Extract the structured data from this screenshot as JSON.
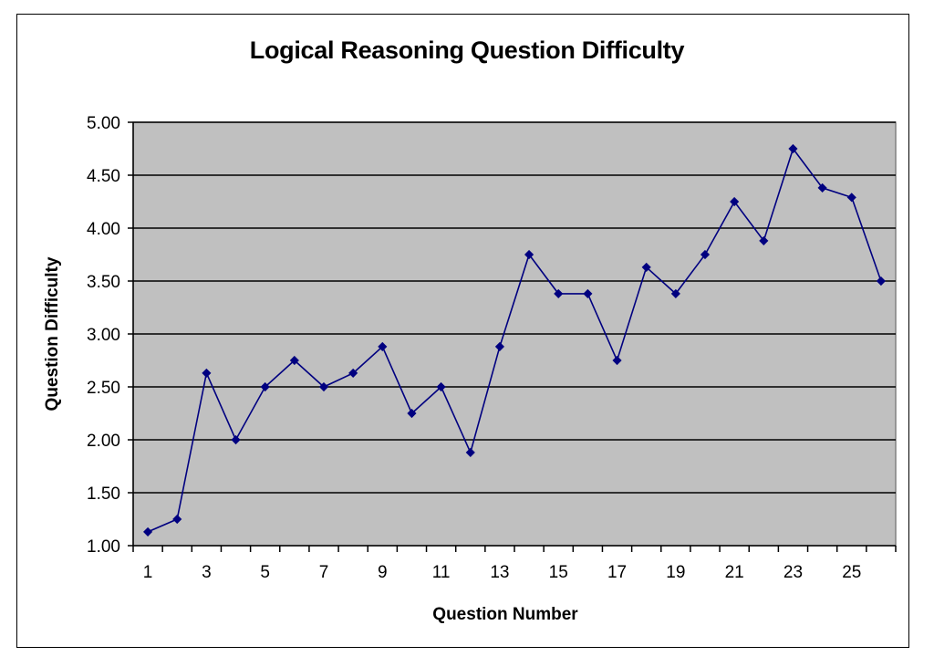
{
  "chart_data": {
    "type": "line",
    "title": "Logical Reasoning Question Difficulty",
    "xlabel": "Question Number",
    "ylabel": "Question Difficulty",
    "x": [
      1,
      2,
      3,
      4,
      5,
      6,
      7,
      8,
      9,
      10,
      11,
      12,
      13,
      14,
      15,
      16,
      17,
      18,
      19,
      20,
      21,
      22,
      23,
      24,
      25,
      26
    ],
    "x_tick_labels": [
      "1",
      "3",
      "5",
      "7",
      "9",
      "11",
      "13",
      "15",
      "17",
      "19",
      "21",
      "23",
      "25"
    ],
    "y_tick_labels": [
      "1.00",
      "1.50",
      "2.00",
      "2.50",
      "3.00",
      "3.50",
      "4.00",
      "4.50",
      "5.00"
    ],
    "ylim": [
      1.0,
      5.0
    ],
    "grid": true,
    "legend": null,
    "series": [
      {
        "name": "Question Difficulty",
        "color": "#000080",
        "marker": "diamond",
        "values": [
          1.13,
          1.25,
          2.63,
          2.0,
          2.5,
          2.75,
          2.5,
          2.63,
          2.88,
          2.25,
          2.5,
          1.88,
          2.88,
          3.75,
          3.38,
          3.38,
          2.75,
          3.63,
          3.38,
          3.75,
          4.25,
          3.88,
          4.75,
          4.38,
          4.29,
          3.5
        ]
      }
    ],
    "colors": {
      "plot_background": "#C0C0C0",
      "gridline": "#000000",
      "line": "#000080"
    }
  }
}
